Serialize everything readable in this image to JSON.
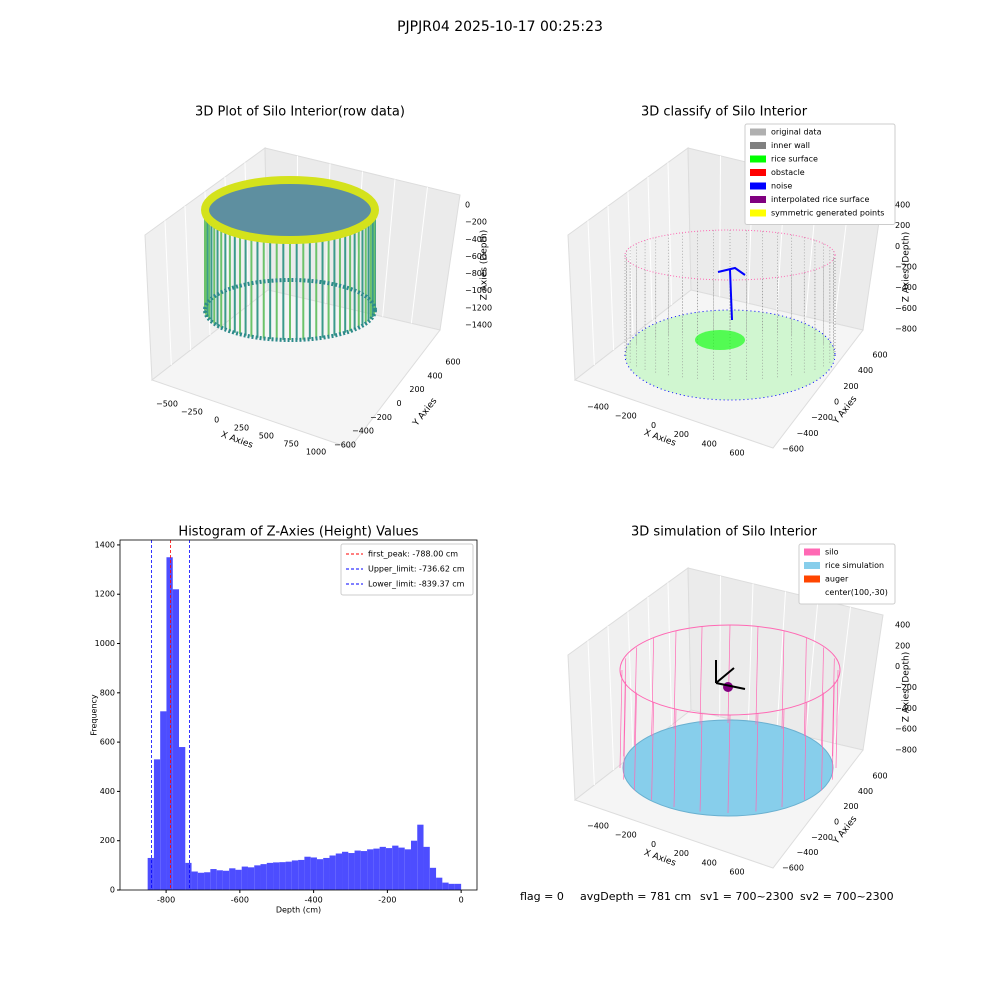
{
  "suptitle": "PJPJR04 2025-10-17 00:25:23",
  "panels": [
    {
      "title": "3D Plot of Silo Interior(row data)",
      "xlabel": "X Axies",
      "ylabel": "Y Axies",
      "zlabel": "Z Axies (Depth)",
      "xticks": [
        "−500",
        "−250",
        "0",
        "250",
        "500",
        "750",
        "1000"
      ],
      "yticks": [
        "−600",
        "−400",
        "−200",
        "0",
        "200",
        "400",
        "600"
      ],
      "zticks": [
        "0",
        "−200",
        "−400",
        "−600",
        "−800",
        "−1000",
        "−1200",
        "−1400"
      ]
    },
    {
      "title": "3D classify of Silo Interior",
      "xlabel": "X Axies",
      "ylabel": "Y Axies",
      "zlabel": "Z Axies (Depth)",
      "xticks": [
        "−400",
        "−200",
        "0",
        "200",
        "400",
        "600"
      ],
      "yticks": [
        "−600",
        "−400",
        "−200",
        "0",
        "200",
        "400",
        "600"
      ],
      "zticks": [
        "400",
        "200",
        "0",
        "−200",
        "−400",
        "−600",
        "−800"
      ],
      "legend": [
        {
          "label": "original data",
          "color": "#b0b0b0"
        },
        {
          "label": "inner wall",
          "color": "#808080"
        },
        {
          "label": "rice surface",
          "color": "#00ff00"
        },
        {
          "label": "obstacle",
          "color": "#ff0000"
        },
        {
          "label": "noise",
          "color": "#0000ff"
        },
        {
          "label": "interpolated rice surface",
          "color": "#800080"
        },
        {
          "label": "symmetric generated points",
          "color": "#ffff00"
        }
      ]
    },
    {
      "title": "3D simulation of Silo Interior",
      "xlabel": "X Axies",
      "ylabel": "Y Axies",
      "zlabel": "Z Axies (Depth)",
      "xticks": [
        "−400",
        "−200",
        "0",
        "200",
        "400",
        "600"
      ],
      "yticks": [
        "−600",
        "−400",
        "−200",
        "0",
        "200",
        "400",
        "600"
      ],
      "zticks": [
        "400",
        "200",
        "0",
        "−200",
        "−400",
        "−600",
        "−800"
      ],
      "legend": [
        {
          "label": "silo",
          "color": "#ff69b4"
        },
        {
          "label": "rice simulation",
          "color": "#87ceeb"
        },
        {
          "label": "auger",
          "color": "#ff4500"
        },
        {
          "label": "center(100,-30)"
        }
      ]
    }
  ],
  "chart_data": {
    "type": "histogram",
    "title": "Histogram of Z-Axies (Height) Values",
    "xlabel": "Depth (cm)",
    "ylabel": "Frequency",
    "color": "#4d4dff",
    "bins": [
      -850,
      -833,
      -816,
      -799,
      -782,
      -765,
      -748,
      -731,
      -714,
      -697,
      -680,
      -663,
      -646,
      -629,
      -612,
      -595,
      -578,
      -561,
      -544,
      -527,
      -510,
      -493,
      -476,
      -459,
      -442,
      -425,
      -408,
      -391,
      -374,
      -357,
      -340,
      -323,
      -306,
      -289,
      -272,
      -255,
      -238,
      -221,
      -204,
      -187,
      -170,
      -153,
      -136,
      -119,
      -102,
      -85,
      -68,
      -51,
      -34,
      -17,
      0
    ],
    "values": [
      130,
      530,
      725,
      1350,
      1220,
      580,
      110,
      75,
      70,
      72,
      85,
      80,
      78,
      88,
      82,
      95,
      92,
      100,
      105,
      110,
      112,
      113,
      115,
      120,
      122,
      135,
      132,
      125,
      130,
      140,
      148,
      155,
      150,
      160,
      158,
      165,
      168,
      175,
      170,
      180,
      172,
      165,
      200,
      265,
      175,
      90,
      50,
      30,
      25,
      25
    ],
    "xlim": [
      -925,
      43
    ],
    "ylim": [
      0,
      1420
    ],
    "xticks": [
      -800,
      -600,
      -400,
      -200,
      0
    ],
    "yticks": [
      0,
      200,
      400,
      600,
      800,
      1000,
      1200,
      1400
    ],
    "lines": [
      {
        "label": "first_peak: -788.00 cm",
        "value": -788,
        "color": "#ff0000"
      },
      {
        "label": "Upper_limit: -736.62 cm",
        "value": -736.62,
        "color": "#0000ff"
      },
      {
        "label": "Lower_limit: -839.37 cm",
        "value": -839.37,
        "color": "#0000ff"
      }
    ],
    "legend": "upper right"
  },
  "footer": [
    "flag = 0",
    "avgDepth = 781 cm",
    "sv1 = 700~2300",
    "sv2 = 700~2300"
  ]
}
